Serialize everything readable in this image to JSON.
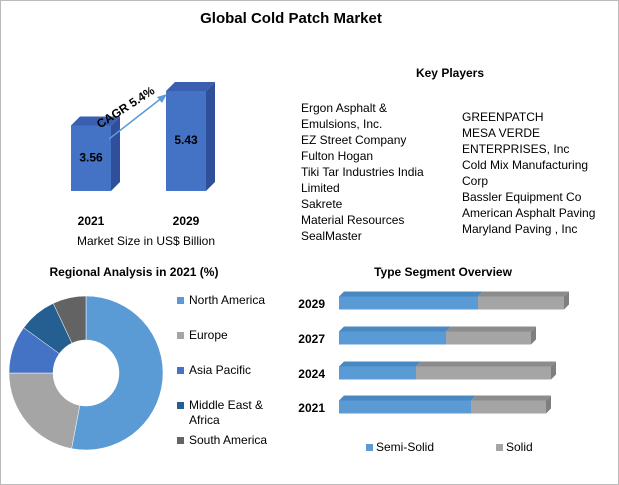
{
  "title": "Global Cold Patch Market",
  "key_players": {
    "title": "Key Players",
    "left": [
      "Ergon Asphalt &",
      "Emulsions, Inc.",
      "EZ Street Company",
      "Fulton Hogan",
      "Tiki Tar Industries India",
      "Limited",
      "Sakrete",
      "Material Resources",
      "SealMaster"
    ],
    "right": [
      "GREENPATCH",
      "MESA VERDE",
      "ENTERPRISES,  Inc",
      "Cold Mix Manufacturing",
      "Corp",
      "Bassler Equipment Co",
      "American Asphalt Paving",
      "Maryland Paving , Inc"
    ]
  },
  "chart_data": [
    {
      "type": "bar",
      "categories": [
        "2021",
        "2029"
      ],
      "values": [
        3.56,
        5.43
      ],
      "color": "#4472c4",
      "xlabel": "Market Size in US$ Billion",
      "annotation": "CAGR 5.4%"
    },
    {
      "type": "pie",
      "title": "Regional Analysis in 2021 (%)",
      "categories": [
        "North America",
        "Europe",
        "Asia Pacific",
        "Middle East & Africa",
        "South America"
      ],
      "values": [
        53,
        22,
        10,
        8,
        7
      ],
      "colors": [
        "#5b9bd5",
        "#a5a5a5",
        "#4472c4",
        "#255e91",
        "#636363"
      ]
    },
    {
      "type": "stacked-barh",
      "title": "Type Segment Overview",
      "categories": [
        "2029",
        "2027",
        "2024",
        "2021"
      ],
      "series": [
        {
          "name": "Semi-Solid",
          "color": "#5b9bd5",
          "values": [
            139,
            107,
            77,
            132
          ]
        },
        {
          "name": "Solid",
          "color": "#a5a5a5",
          "values": [
            86,
            85,
            135,
            75
          ]
        }
      ]
    }
  ]
}
